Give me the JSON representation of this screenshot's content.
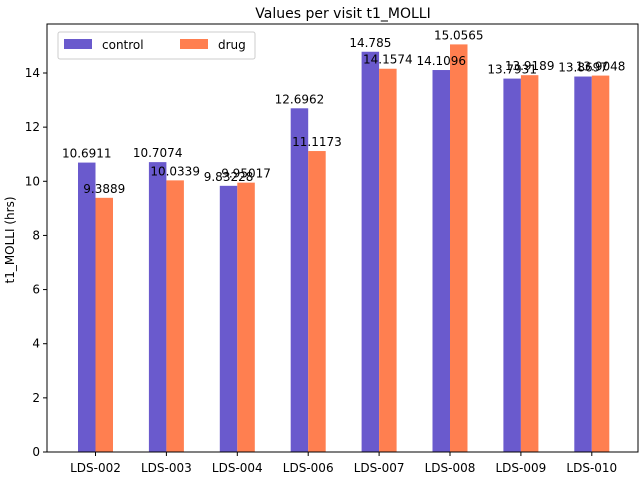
{
  "chart_data": {
    "type": "bar",
    "title": "Values per visit t1_MOLLI",
    "xlabel": "",
    "ylabel": "t1_MOLLI (hrs)",
    "categories": [
      "LDS-002",
      "LDS-003",
      "LDS-004",
      "LDS-006",
      "LDS-007",
      "LDS-008",
      "LDS-009",
      "LDS-010"
    ],
    "series": [
      {
        "name": "control",
        "color": "#6a5acd",
        "values": [
          10.6911,
          10.7074,
          9.83228,
          12.6962,
          14.785,
          14.1096,
          13.7931,
          13.8697
        ],
        "labels": [
          "10.6911",
          "10.7074",
          "9.83228",
          "12.6962",
          "14.785",
          "14.1096",
          "13.7931",
          "13.8697"
        ]
      },
      {
        "name": "drug",
        "color": "#ff7f50",
        "values": [
          9.3889,
          10.0339,
          9.95017,
          11.1173,
          14.1574,
          15.0565,
          13.9189,
          13.9048
        ],
        "labels": [
          "9.3889",
          "10.0339",
          "9.95017",
          "11.1173",
          "14.1574",
          "15.0565",
          "13.9189",
          "13.9048"
        ]
      }
    ],
    "yticks": [
      0,
      2,
      4,
      6,
      8,
      10,
      12,
      14
    ],
    "ylim": [
      0,
      15.81
    ],
    "grid": false,
    "legend_position": "top-left"
  }
}
